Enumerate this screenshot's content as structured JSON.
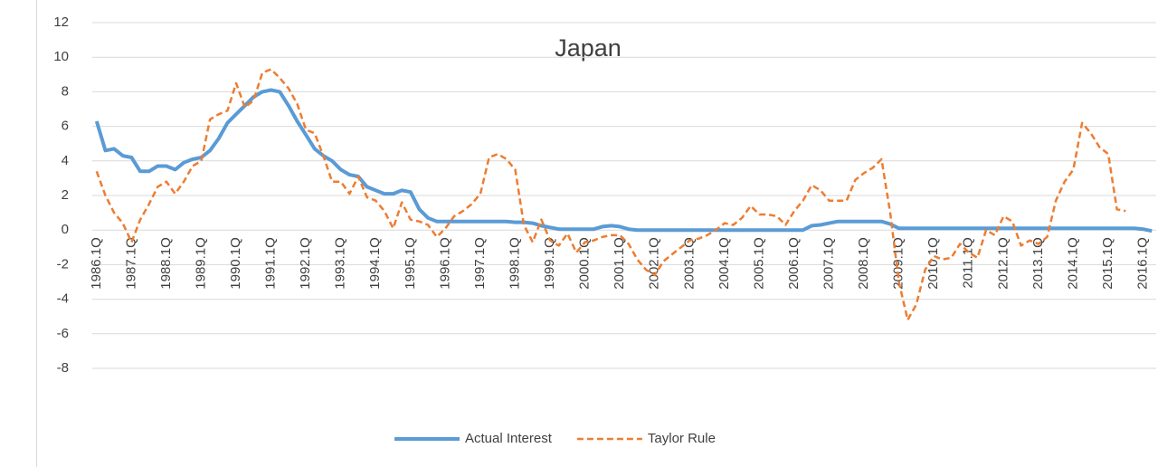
{
  "chart_data": {
    "type": "line",
    "title": "Japan",
    "categories": [
      "1986.1Q",
      null,
      null,
      null,
      "1987.1Q",
      null,
      null,
      null,
      "1988.1Q",
      null,
      null,
      null,
      "1989.1Q",
      null,
      null,
      null,
      "1990.1Q",
      null,
      null,
      null,
      "1991.1Q",
      null,
      null,
      null,
      "1992.1Q",
      null,
      null,
      null,
      "1993.1Q",
      null,
      null,
      null,
      "1994.1Q",
      null,
      null,
      null,
      "1995.1Q",
      null,
      null,
      null,
      "1996.1Q",
      null,
      null,
      null,
      "1997.1Q",
      null,
      null,
      null,
      "1998.1Q",
      null,
      null,
      null,
      "1999.1Q",
      null,
      null,
      null,
      "2000.1Q",
      null,
      null,
      null,
      "2001.1Q",
      null,
      null,
      null,
      "2002.1Q",
      null,
      null,
      null,
      "2003.1Q",
      null,
      null,
      null,
      "2004.1Q",
      null,
      null,
      null,
      "2005.1Q",
      null,
      null,
      null,
      "2006.1Q",
      null,
      null,
      null,
      "2007.1Q",
      null,
      null,
      null,
      "2008.1Q",
      null,
      null,
      null,
      "2009.1Q",
      null,
      null,
      null,
      "2010.1Q",
      null,
      null,
      null,
      "2011.1Q",
      null,
      null,
      null,
      "2012.1Q",
      null,
      null,
      null,
      "2013.1Q",
      null,
      null,
      null,
      "2014.1Q",
      null,
      null,
      null,
      "2015.1Q",
      null,
      null,
      null,
      "2016.1Q",
      null
    ],
    "series": [
      {
        "name": "Actual Interest",
        "color": "#5b9bd5",
        "dash": false,
        "values": [
          6.3,
          4.6,
          4.7,
          4.3,
          4.2,
          3.4,
          3.4,
          3.7,
          3.7,
          3.5,
          3.9,
          4.1,
          4.2,
          4.6,
          5.3,
          6.2,
          6.7,
          7.2,
          7.7,
          8.0,
          8.1,
          8.0,
          7.2,
          6.3,
          5.5,
          4.7,
          4.3,
          4.0,
          3.5,
          3.2,
          3.1,
          2.5,
          2.3,
          2.1,
          2.1,
          2.3,
          2.2,
          1.2,
          0.7,
          0.5,
          0.5,
          0.5,
          0.5,
          0.5,
          0.5,
          0.5,
          0.5,
          0.5,
          0.45,
          0.45,
          0.4,
          0.25,
          0.15,
          0.05,
          0.05,
          0.05,
          0.05,
          0.05,
          0.2,
          0.25,
          0.2,
          0.05,
          0.0,
          0.0,
          0.0,
          0.0,
          0.0,
          0.0,
          0.0,
          0.0,
          0.0,
          0.0,
          0.0,
          0.0,
          0.0,
          0.0,
          0.0,
          0.0,
          0.0,
          0.0,
          0.0,
          0.0,
          0.25,
          0.3,
          0.4,
          0.5,
          0.5,
          0.5,
          0.5,
          0.5,
          0.5,
          0.35,
          0.1,
          0.1,
          0.1,
          0.1,
          0.1,
          0.1,
          0.1,
          0.1,
          0.1,
          0.1,
          0.1,
          0.1,
          0.1,
          0.1,
          0.1,
          0.1,
          0.1,
          0.1,
          0.1,
          0.1,
          0.1,
          0.1,
          0.1,
          0.1,
          0.1,
          0.1,
          0.1,
          0.1,
          0.05,
          -0.05
        ]
      },
      {
        "name": "Taylor Rule",
        "color": "#ed7d31",
        "dash": true,
        "values": [
          3.4,
          2.0,
          1.0,
          0.4,
          -0.7,
          0.6,
          1.5,
          2.5,
          2.8,
          2.1,
          2.8,
          3.7,
          4.0,
          6.4,
          6.7,
          6.9,
          8.5,
          7.1,
          7.5,
          9.1,
          9.3,
          8.8,
          8.2,
          7.3,
          5.8,
          5.6,
          4.3,
          2.8,
          2.8,
          2.1,
          3.1,
          1.9,
          1.7,
          1.1,
          0.1,
          1.6,
          0.6,
          0.5,
          0.3,
          -0.4,
          0.1,
          0.8,
          1.1,
          1.5,
          2.1,
          4.2,
          4.4,
          4.1,
          3.5,
          0.3,
          -0.7,
          0.6,
          -0.6,
          -0.9,
          -0.2,
          -1.3,
          -0.7,
          -0.6,
          -0.4,
          -0.3,
          -0.3,
          -0.8,
          -1.7,
          -2.3,
          -2.6,
          -1.8,
          -1.4,
          -1.0,
          -0.6,
          -0.5,
          -0.3,
          0.0,
          0.4,
          0.3,
          0.7,
          1.4,
          0.9,
          0.9,
          0.8,
          0.3,
          1.1,
          1.7,
          2.6,
          2.3,
          1.7,
          1.7,
          1.7,
          2.9,
          3.3,
          3.6,
          4.1,
          1.0,
          -3.0,
          -5.2,
          -4.3,
          -2.3,
          -1.5,
          -1.7,
          -1.6,
          -0.8,
          -1.3,
          -1.6,
          0.0,
          -0.3,
          0.8,
          0.5,
          -0.9,
          -0.6,
          -0.8,
          -0.4,
          1.7,
          2.8,
          3.5,
          6.2,
          5.6,
          4.8,
          4.4,
          1.2,
          1.1,
          null,
          null,
          null
        ]
      }
    ],
    "ylim": [
      -8,
      12
    ],
    "yticks": [
      -8,
      -6,
      -4,
      -2,
      0,
      2,
      4,
      6,
      8,
      10,
      12
    ],
    "grid": true,
    "legend": "bottom"
  }
}
